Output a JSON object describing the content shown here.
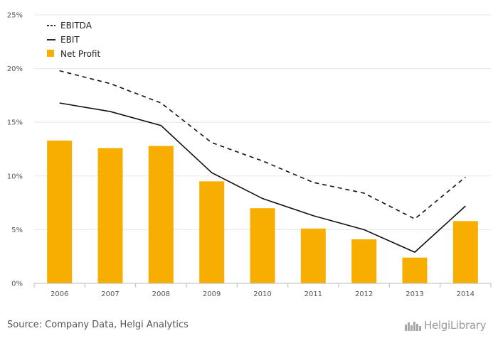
{
  "chart_data": {
    "type": "bar",
    "categories": [
      "2006",
      "2007",
      "2008",
      "2009",
      "2010",
      "2011",
      "2012",
      "2013",
      "2014"
    ],
    "ylim": [
      0,
      25
    ],
    "yticks": [
      "0%",
      "5%",
      "10%",
      "15%",
      "20%",
      "25%"
    ],
    "yunit": "%",
    "grid": true,
    "legend_position": "top-left",
    "series": [
      {
        "name": "EBITDA",
        "kind": "line",
        "style": "dashed",
        "color": "#111111",
        "values": [
          19.8,
          18.6,
          16.8,
          13.1,
          11.4,
          9.4,
          8.4,
          6.0,
          9.9
        ]
      },
      {
        "name": "EBIT",
        "kind": "line",
        "style": "solid",
        "color": "#111111",
        "values": [
          16.8,
          16.0,
          14.7,
          10.3,
          7.9,
          6.3,
          5.0,
          2.9,
          7.2
        ]
      },
      {
        "name": "Net Profit",
        "kind": "bar",
        "color": "#F7AE00",
        "values": [
          13.3,
          12.6,
          12.8,
          9.5,
          7.0,
          5.1,
          4.1,
          2.4,
          5.8
        ]
      }
    ]
  },
  "footer": {
    "source": "Source: Company Data, Helgi Analytics",
    "logo_text": "HelgiLibrary"
  }
}
